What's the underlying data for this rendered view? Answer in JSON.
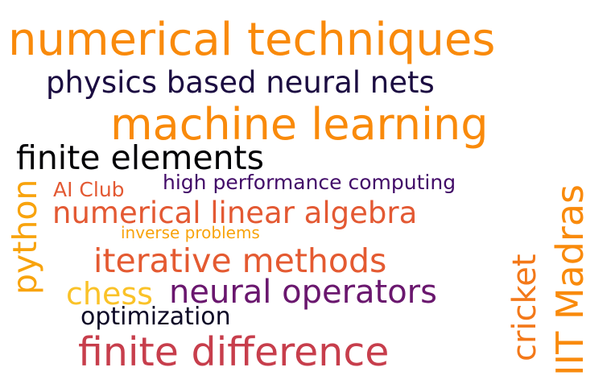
{
  "words": {
    "numerical_techniques": {
      "text": "numerical techniques",
      "color": "#f98a0b"
    },
    "physics_based_neural_nets": {
      "text": "physics based neural nets",
      "color": "#1b0c41"
    },
    "machine_learning": {
      "text": "machine learning",
      "color": "#f98a0b"
    },
    "finite_elements": {
      "text": "finite elements",
      "color": "#000004"
    },
    "high_performance_computing": {
      "text": "high performance computing",
      "color": "#420a68"
    },
    "ai_club": {
      "text": "AI Club",
      "color": "#e35933"
    },
    "numerical_linear_algebra": {
      "text": "numerical linear algebra",
      "color": "#e35933"
    },
    "inverse_problems": {
      "text": "inverse problems",
      "color": "#f8a30c"
    },
    "iterative_methods": {
      "text": "iterative methods",
      "color": "#e45a31"
    },
    "chess": {
      "text": "chess",
      "color": "#fac228"
    },
    "neural_operators": {
      "text": "neural operators",
      "color": "#6a176e"
    },
    "optimization": {
      "text": "optimization",
      "color": "#0c0826"
    },
    "finite_difference": {
      "text": "finite difference",
      "color": "#c73e4c"
    },
    "python": {
      "text": "python",
      "color": "#f8a30c"
    },
    "cricket": {
      "text": "cricket",
      "color": "#f37819"
    },
    "iit_madras": {
      "text": "IIT Madras",
      "color": "#f98a0b"
    }
  }
}
